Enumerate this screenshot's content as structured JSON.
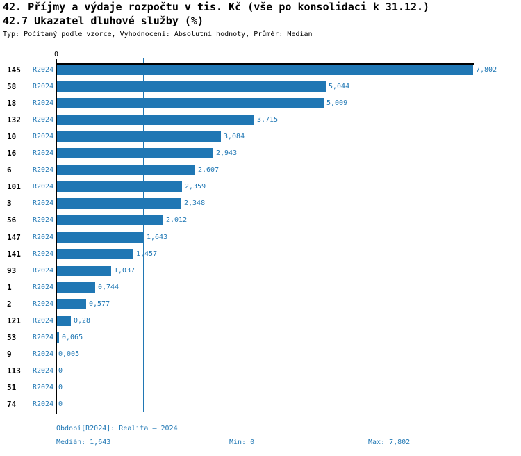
{
  "header": {
    "title_line1": "42. Příjmy a výdaje rozpočtu v tis. Kč (vše po konsolidaci k 31.12.)",
    "title_line2": "42.7 Ukazatel dluhové služby (%)",
    "subtitle": "Typ: Počítaný podle vzorce, Vyhodnocení: Absolutní hodnoty, Průměr: Medián"
  },
  "chart_data": {
    "type": "bar",
    "orientation": "horizontal",
    "series_label": "R2024",
    "axis_zero_label": "0",
    "categories": [
      "145",
      "58",
      "18",
      "132",
      "10",
      "16",
      "6",
      "101",
      "3",
      "56",
      "147",
      "141",
      "93",
      "1",
      "2",
      "121",
      "53",
      "9",
      "113",
      "51",
      "74"
    ],
    "values": [
      7.802,
      5.044,
      5.009,
      3.715,
      3.084,
      2.943,
      2.607,
      2.359,
      2.348,
      2.012,
      1.643,
      1.457,
      1.037,
      0.744,
      0.577,
      0.28,
      0.065,
      0.005,
      0,
      0,
      0
    ],
    "value_labels": [
      "7,802",
      "5,044",
      "5,009",
      "3,715",
      "3,084",
      "2,943",
      "2,607",
      "2,359",
      "2,348",
      "2,012",
      "1,643",
      "1,457",
      "1,037",
      "0,744",
      "0,577",
      "0,28",
      "0,065",
      "0,005",
      "0",
      "0",
      "0"
    ],
    "xlim": [
      0,
      7.802
    ],
    "median_value": 1.643,
    "grid": false,
    "legend_position": "none",
    "colors": {
      "bar": "#2077b4",
      "text_blue": "#1f77b4",
      "median_line": "#2077b4",
      "axis": "#000000"
    }
  },
  "footer": {
    "period": "Období[R2024]: Realita – 2024",
    "median": "Medián: 1,643",
    "min": "Min: 0",
    "max": "Max: 7,802"
  }
}
